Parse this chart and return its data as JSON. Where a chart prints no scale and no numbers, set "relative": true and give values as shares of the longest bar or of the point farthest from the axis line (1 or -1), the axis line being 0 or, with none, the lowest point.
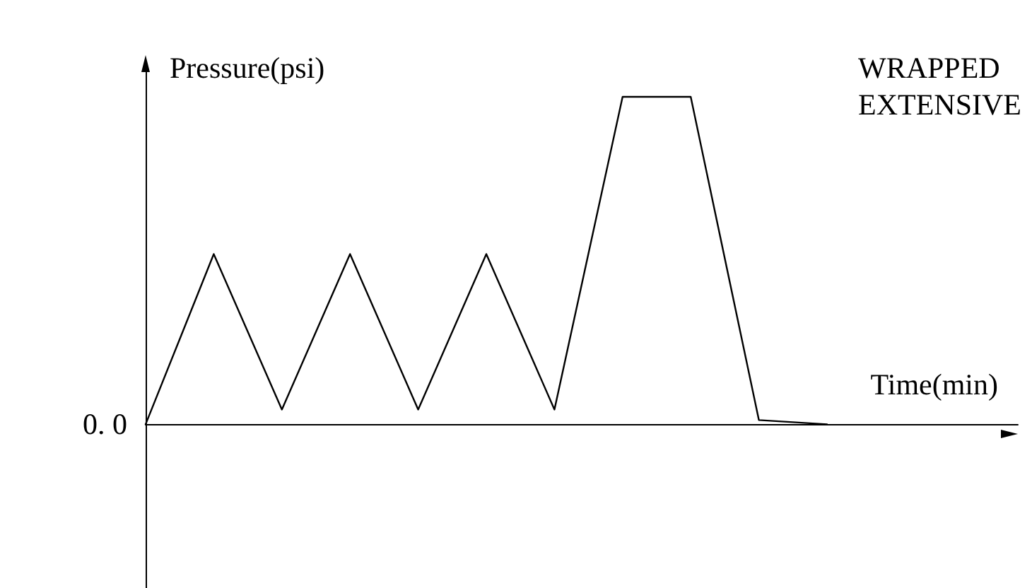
{
  "chart_data": {
    "type": "line",
    "title": "WRAPPED\nEXTENSIVE",
    "xlabel": "Time(min)",
    "ylabel": "Pressure(psi)",
    "relative": true,
    "categories": [
      null,
      null,
      null,
      null,
      null,
      null,
      null,
      null,
      null,
      null,
      null
    ],
    "series": [
      {
        "color": "#000000",
        "values": [
          0,
          0.52,
          0.045,
          0.52,
          0.045,
          0.52,
          0.045,
          1,
          1,
          0.013,
          0
        ]
      }
    ],
    "annotations": [
      "0. 0"
    ],
    "marker": "none",
    "line_style": "solid",
    "grid": false
  }
}
